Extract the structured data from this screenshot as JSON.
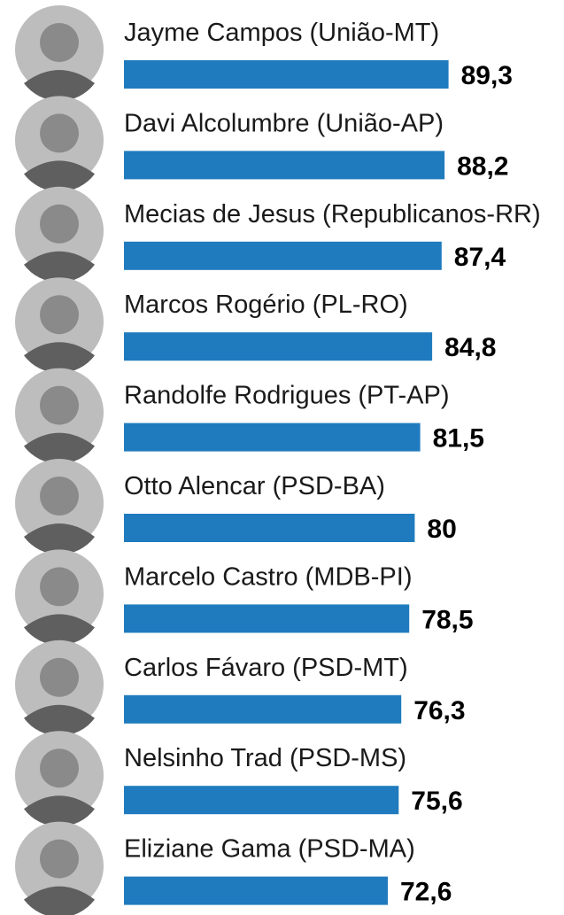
{
  "chart_data": {
    "type": "bar",
    "orientation": "horizontal",
    "categories": [
      "Jayme Campos (União-MT)",
      "Davi Alcolumbre (União-AP)",
      "Mecias de Jesus (Republicanos-RR)",
      "Marcos Rogério (PL-RO)",
      "Randolfe Rodrigues (PT-AP)",
      "Otto Alencar (PSD-BA)",
      "Marcelo Castro (MDB-PI)",
      "Carlos Fávaro (PSD-MT)",
      "Nelsinho Trad (PSD-MS)",
      "Eliziane Gama (PSD-MA)"
    ],
    "values": [
      89.3,
      88.2,
      87.4,
      84.8,
      81.5,
      80,
      78.5,
      76.3,
      75.6,
      72.6
    ],
    "value_labels": [
      "89,3",
      "88,2",
      "87,4",
      "84,8",
      "81,5",
      "80",
      "78,5",
      "76,3",
      "75,6",
      "72,6"
    ],
    "bar_color": "#1f7bbd",
    "photo_icon": "portrait-photo-icon"
  }
}
